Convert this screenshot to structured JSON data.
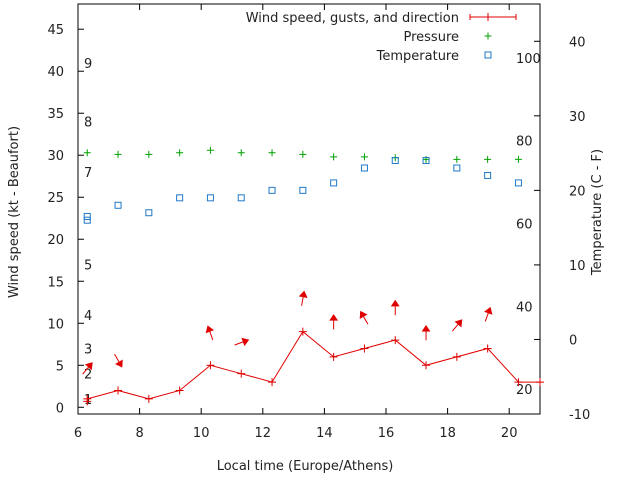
{
  "chart_data": {
    "type": "line",
    "xlabel": "Local time (Europe/Athens)",
    "ylabel": "Wind speed (kt - Beaufort)",
    "y2label": "Temperature (C - F)",
    "xlim": [
      6,
      21
    ],
    "ylim": [
      -0.8,
      48
    ],
    "y2lim": [
      -10,
      45
    ],
    "xticks": [
      6,
      8,
      10,
      12,
      14,
      16,
      18,
      20
    ],
    "yticks": [
      0,
      5,
      10,
      15,
      20,
      25,
      30,
      35,
      40,
      45
    ],
    "y2ticks": [
      -10,
      0,
      10,
      20,
      30,
      40
    ],
    "beaufort_labels": [
      {
        "label": "1",
        "y": 1
      },
      {
        "label": "2",
        "y": 4
      },
      {
        "label": "3",
        "y": 7
      },
      {
        "label": "4",
        "y": 11
      },
      {
        "label": "5",
        "y": 17
      },
      {
        "label": "7",
        "y": 28
      },
      {
        "label": "8",
        "y": 34
      },
      {
        "label": "9",
        "y": 41
      }
    ],
    "fahrenheit_labels": [
      {
        "label": "20",
        "c": -6.67
      },
      {
        "label": "40",
        "c": 4.44
      },
      {
        "label": "60",
        "c": 15.56
      },
      {
        "label": "80",
        "c": 26.67
      },
      {
        "label": "100",
        "c": 37.78
      }
    ],
    "legend": [
      {
        "label": "Wind speed, gusts, and direction",
        "color": "#e00000",
        "marker": "line-plus"
      },
      {
        "label": "Pressure",
        "color": "#00a000",
        "marker": "plus"
      },
      {
        "label": "Temperature",
        "color": "#1f78c8",
        "marker": "square"
      }
    ],
    "series": [
      {
        "name": "Wind speed, gusts, and direction",
        "axis": "left",
        "color": "#e00000",
        "x": [
          6.3,
          7.3,
          8.3,
          9.3,
          10.3,
          11.3,
          12.3,
          13.3,
          14.3,
          15.3,
          16.3,
          17.3,
          18.3,
          19.3,
          20.3,
          21
        ],
        "y": [
          1,
          2,
          1,
          2,
          5,
          4,
          3,
          9,
          6,
          7,
          8,
          5,
          6,
          7,
          3,
          3
        ],
        "gusts": [
          0.7,
          null,
          null,
          null,
          null,
          null,
          null,
          null,
          null,
          null,
          null,
          null,
          null,
          null,
          null,
          null
        ],
        "direction_deg": [
          40,
          150,
          null,
          null,
          340,
          70,
          null,
          10,
          0,
          330,
          0,
          0,
          40,
          20,
          null,
          null
        ],
        "arrow_y": [
          4.6,
          5.6,
          null,
          null,
          8.8,
          7.7,
          null,
          12.9,
          10.1,
          10.6,
          11.8,
          8.8,
          9.7,
          11,
          null,
          null
        ]
      },
      {
        "name": "Pressure",
        "axis": "left",
        "color": "#00a000",
        "x": [
          6.3,
          7.3,
          8.3,
          9.3,
          10.3,
          11.3,
          12.3,
          13.3,
          14.3,
          15.3,
          16.3,
          17.3,
          18.3,
          19.3,
          20.3
        ],
        "y": [
          30.3,
          30.1,
          30.1,
          30.3,
          30.6,
          30.3,
          30.3,
          30.1,
          29.8,
          29.8,
          29.7,
          29.5,
          29.5,
          29.5,
          29.5
        ]
      },
      {
        "name": "Temperature",
        "axis": "right",
        "color": "#1f78c8",
        "x": [
          6.3,
          6.3,
          7.3,
          8.3,
          9.3,
          10.3,
          11.3,
          12.3,
          13.3,
          14.3,
          15.3,
          16.3,
          17.3,
          18.3,
          19.3,
          20.3
        ],
        "y": [
          16.0,
          16.5,
          18.0,
          17.0,
          19.0,
          19.0,
          19.0,
          20.0,
          20.0,
          21.0,
          23.0,
          24.0,
          24.0,
          23.0,
          22.0,
          21.0
        ]
      }
    ]
  }
}
